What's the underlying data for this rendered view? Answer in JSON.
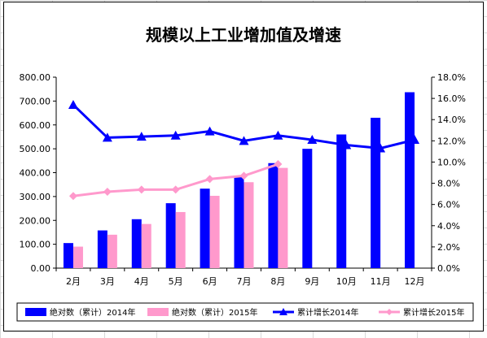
{
  "chart_data": {
    "type": "bar",
    "title": "规模以上工业增加值及增速",
    "categories": [
      "2月",
      "3月",
      "4月",
      "5月",
      "6月",
      "7月",
      "8月",
      "9月",
      "10月",
      "11月",
      "12月"
    ],
    "y_left": {
      "ylim": [
        0,
        800
      ],
      "ticks": [
        "0.00",
        "100.00",
        "200.00",
        "300.00",
        "400.00",
        "500.00",
        "600.00",
        "700.00",
        "800.00"
      ]
    },
    "y_right": {
      "ylim": [
        0,
        18
      ],
      "ticks": [
        "0.0%",
        "2.0%",
        "4.0%",
        "6.0%",
        "8.0%",
        "10.0%",
        "12.0%",
        "14.0%",
        "16.0%",
        "18.0%"
      ]
    },
    "series": [
      {
        "name": "绝对数（累计）2014年",
        "kind": "bar",
        "axis": "left",
        "color": "#0000ff",
        "values": [
          105,
          158,
          205,
          272,
          333,
          383,
          440,
          500,
          560,
          630,
          737
        ]
      },
      {
        "name": "绝对数（累计）2015年",
        "kind": "bar",
        "axis": "left",
        "color": "#ff99cc",
        "values": [
          90,
          140,
          185,
          235,
          303,
          360,
          420,
          null,
          null,
          null,
          null
        ]
      },
      {
        "name": "累计增长2014年",
        "kind": "line",
        "axis": "right",
        "color": "#0000ff",
        "marker": "triangle",
        "values": [
          15.4,
          12.3,
          12.4,
          12.5,
          12.9,
          12.0,
          12.5,
          12.1,
          11.6,
          11.3,
          12.1
        ]
      },
      {
        "name": "累计增长2015年",
        "kind": "line",
        "axis": "right",
        "color": "#ff99cc",
        "marker": "diamond",
        "values": [
          6.8,
          7.2,
          7.4,
          7.4,
          8.4,
          8.7,
          9.8,
          null,
          null,
          null,
          null
        ]
      }
    ],
    "grid": false,
    "legend_position": "bottom"
  }
}
